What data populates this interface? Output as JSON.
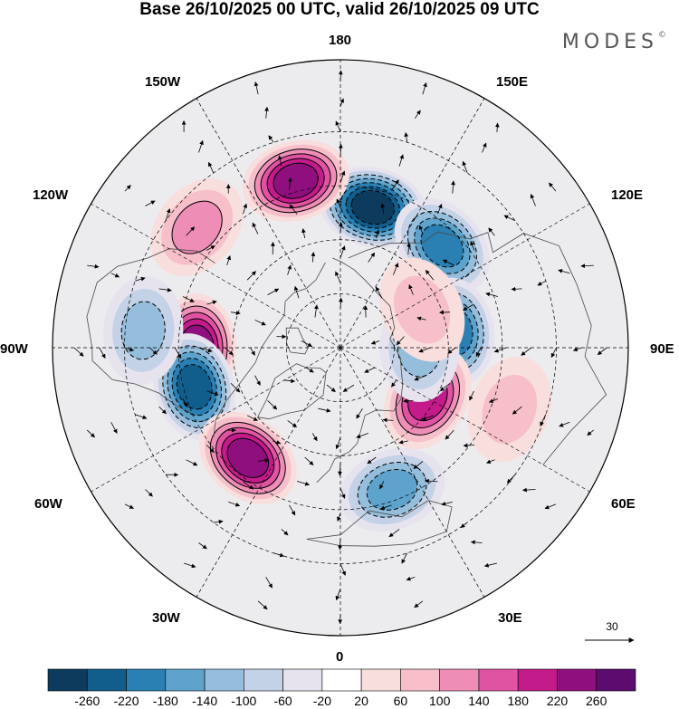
{
  "title": "Base 26/10/2025 00 UTC, valid 26/10/2025 09 UTC",
  "brand": {
    "name": "MODES",
    "mark": "©"
  },
  "map": {
    "projection": "north-polar-stereographic",
    "center_label_top": "180",
    "center_label_bottom": "0",
    "longitude_labels": {
      "w150": "150W",
      "e150": "150E",
      "w120": "120W",
      "e120": "120E",
      "w90": "90W",
      "e90": "90E",
      "w60": "60W",
      "e60": "60E",
      "w30": "30W",
      "e30": "30E"
    },
    "colors": {
      "ocean_bg": "#ececef",
      "coast": "#4a4a4a",
      "contour": "#000000",
      "graticule": "#000000"
    },
    "anomalies": [
      {
        "id": "a1",
        "lon": 167,
        "lat": 50,
        "value": -260
      },
      {
        "id": "a2",
        "lon": -165,
        "lat": 42,
        "value": 230
      },
      {
        "id": "a3",
        "lon": 135,
        "lat": 50,
        "value": -210
      },
      {
        "id": "a4",
        "lon": 98,
        "lat": 58,
        "value": -180
      },
      {
        "id": "a5",
        "lon": -90,
        "lat": 50,
        "value": 230
      },
      {
        "id": "a6",
        "lon": -75,
        "lat": 48,
        "value": -220
      },
      {
        "id": "a7",
        "lon": -40,
        "lat": 50,
        "value": 230
      },
      {
        "id": "a8",
        "lon": 20,
        "lat": 48,
        "value": -140
      },
      {
        "id": "a9",
        "lon": 60,
        "lat": 62,
        "value": 180
      },
      {
        "id": "a10",
        "lon": 90,
        "lat": 68,
        "value": -120
      },
      {
        "id": "a11",
        "lon": -130,
        "lat": 38,
        "value": 120
      },
      {
        "id": "a12",
        "lon": -95,
        "lat": 35,
        "value": -120
      },
      {
        "id": "a13",
        "lon": 70,
        "lat": 40,
        "value": 80
      },
      {
        "id": "a14",
        "lon": 115,
        "lat": 65,
        "value": 60
      }
    ]
  },
  "vector_scale": {
    "label": "30"
  },
  "colorbar": {
    "colors": [
      "#0d3b5e",
      "#115d8c",
      "#2a7fb3",
      "#5ea3cc",
      "#95bedc",
      "#c3d2e7",
      "#e6e3ef",
      "#ffffff",
      "#f9dede",
      "#f6bfca",
      "#ee8eb6",
      "#e052a2",
      "#c41b8b",
      "#8f0f7f",
      "#5c0c6e"
    ],
    "ticks": [
      "-260",
      "-220",
      "-180",
      "-140",
      "-100",
      "-60",
      "-20",
      "20",
      "60",
      "100",
      "140",
      "180",
      "220",
      "260"
    ]
  }
}
